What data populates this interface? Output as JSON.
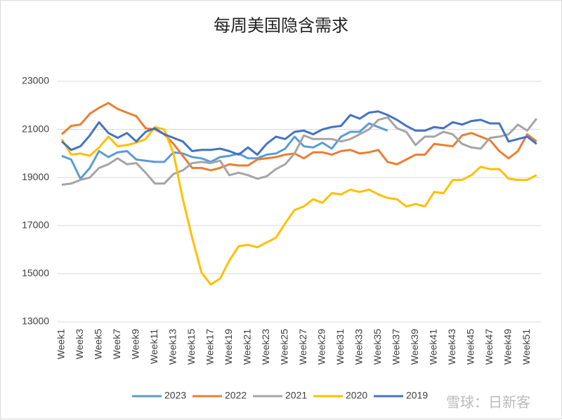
{
  "chart_data": {
    "type": "line",
    "title": "每周美国隐含需求",
    "categories": [
      "Week1",
      null,
      "Week3",
      null,
      "Week5",
      null,
      "Week7",
      null,
      "Week9",
      null,
      "Week11",
      null,
      "Week13",
      null,
      "Week15",
      null,
      "Week17",
      null,
      "Week19",
      null,
      "Week21",
      null,
      "Week23",
      null,
      "Week25",
      null,
      "Week27",
      null,
      "Week29",
      null,
      "Week31",
      null,
      "Week33",
      null,
      "Week35",
      null,
      "Week37",
      null,
      "Week39",
      null,
      "Week41",
      null,
      "Week43",
      null,
      "Week45",
      null,
      "Week47",
      null,
      "Week49",
      null,
      "Week51",
      null
    ],
    "ylim": [
      13000,
      23000
    ],
    "yticks": [
      13000,
      15000,
      17000,
      19000,
      21000,
      23000
    ],
    "grid": true,
    "legend": "bottom",
    "series": [
      {
        "name": "2023",
        "color": "#5b9bd5",
        "values": [
          19900,
          19750,
          18950,
          19400,
          20100,
          19850,
          20050,
          20100,
          19750,
          19700,
          19650,
          19650,
          20050,
          20000,
          19850,
          19800,
          19650,
          19850,
          19900,
          20000,
          19800,
          19800,
          19950,
          20000,
          20200,
          20700,
          20300,
          20250,
          20450,
          20200,
          20700,
          20900,
          20900,
          21250,
          21100,
          20950,
          null,
          null,
          null,
          null,
          null,
          null,
          null,
          null,
          null,
          null,
          null,
          null,
          null,
          null,
          null,
          null
        ]
      },
      {
        "name": "2022",
        "color": "#ed7d31",
        "values": [
          20800,
          21150,
          21200,
          21650,
          21900,
          22100,
          21850,
          21700,
          21550,
          21050,
          21000,
          20800,
          20400,
          19900,
          19400,
          19400,
          19300,
          19400,
          19550,
          19500,
          19500,
          19750,
          19800,
          19850,
          19950,
          20000,
          19800,
          20050,
          20050,
          19950,
          20100,
          20150,
          20000,
          20050,
          20150,
          19650,
          19550,
          19750,
          19950,
          19950,
          20400,
          20350,
          20300,
          20750,
          20850,
          20700,
          20550,
          20100,
          19800,
          20100,
          20800,
          20500
        ]
      },
      {
        "name": "2021",
        "color": "#a5a5a5",
        "values": [
          18700,
          18750,
          18900,
          19000,
          19400,
          19550,
          19800,
          19550,
          19600,
          19200,
          18750,
          18750,
          19150,
          19300,
          19600,
          19650,
          19600,
          19700,
          19100,
          19200,
          19100,
          18950,
          19050,
          19350,
          19550,
          20000,
          20750,
          20600,
          20600,
          20600,
          20500,
          20600,
          20800,
          21000,
          21400,
          21500,
          21050,
          20900,
          20350,
          20700,
          20700,
          20900,
          20800,
          20400,
          20250,
          20200,
          20650,
          20700,
          20800,
          21200,
          20950,
          21450
        ]
      },
      {
        "name": "2020",
        "color": "#ffc000",
        "values": [
          20600,
          19950,
          20000,
          19900,
          20250,
          20700,
          20300,
          20350,
          20450,
          20600,
          21100,
          21000,
          20000,
          18100,
          16500,
          15050,
          14550,
          14800,
          15550,
          16150,
          16200,
          16100,
          16300,
          16500,
          17100,
          17650,
          17800,
          18100,
          17950,
          18350,
          18300,
          18500,
          18400,
          18500,
          18300,
          18150,
          18100,
          17800,
          17900,
          17800,
          18400,
          18350,
          18900,
          18900,
          19100,
          19450,
          19350,
          19350,
          18950,
          18900,
          18900,
          19100
        ]
      },
      {
        "name": "2019",
        "color": "#4472c4",
        "values": [
          20500,
          20150,
          20300,
          20750,
          21300,
          20850,
          20650,
          20850,
          20500,
          20900,
          21050,
          20800,
          20650,
          20500,
          20100,
          20150,
          20150,
          20200,
          20100,
          19950,
          20250,
          19950,
          20400,
          20700,
          20600,
          20900,
          20950,
          20800,
          21000,
          21100,
          21150,
          21600,
          21450,
          21700,
          21750,
          21600,
          21400,
          21150,
          20950,
          20950,
          21100,
          21050,
          21300,
          21200,
          21350,
          21400,
          21250,
          21250,
          20500,
          20600,
          20700,
          20400
        ]
      }
    ]
  },
  "watermark": "雪球：日新客"
}
